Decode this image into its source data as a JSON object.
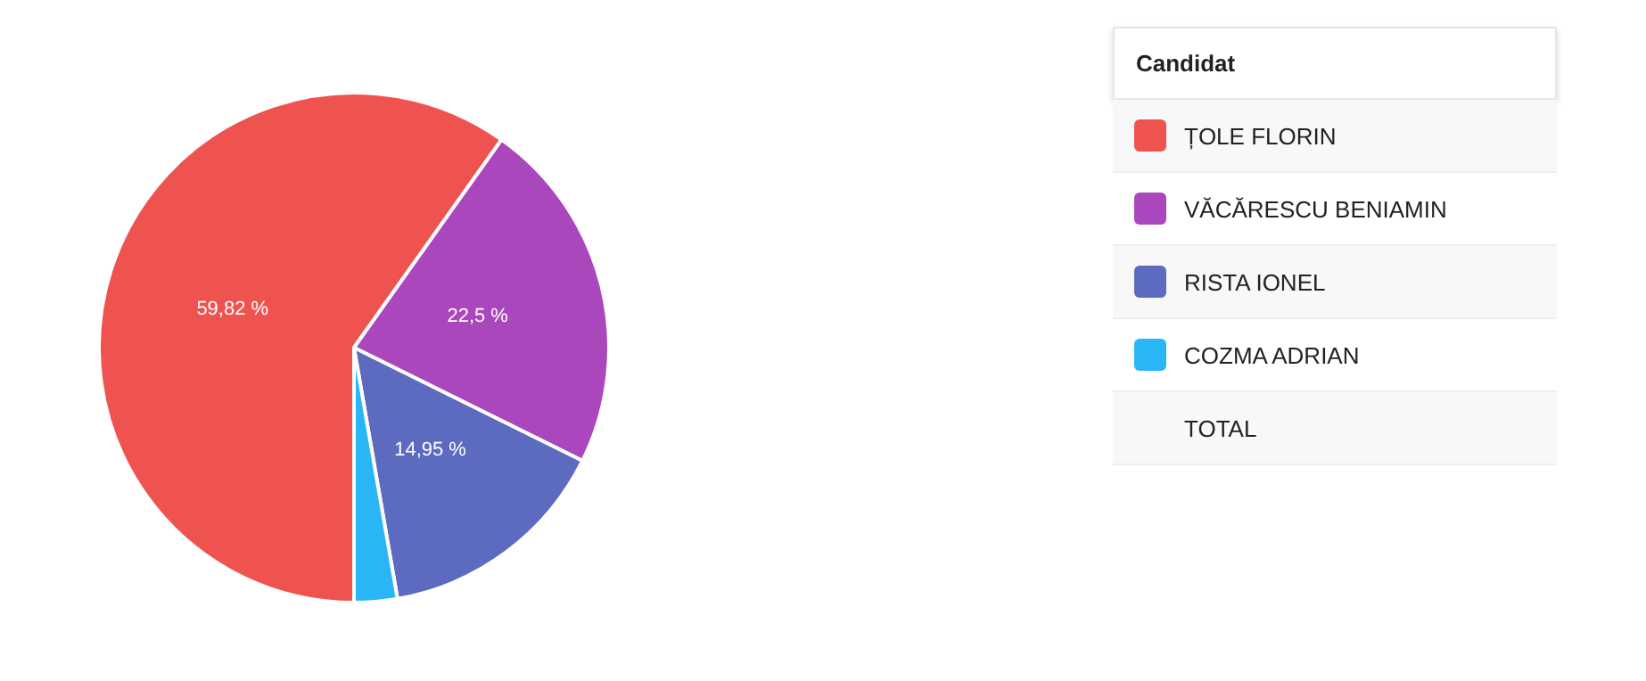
{
  "chart_data": {
    "type": "pie",
    "legend_title": "Candidat",
    "legend": "right",
    "categories": [
      "ȚOLE FLORIN",
      "VĂCĂRESCU BENIAMIN",
      "RISTA IONEL",
      "COZMA ADRIAN"
    ],
    "values": [
      59.82,
      22.5,
      14.95,
      2.73
    ],
    "value_labels": [
      "59,82 %",
      "22,5 %",
      "14,95 %",
      null
    ],
    "colors": [
      "#ef5350",
      "#ab47bc",
      "#5c6bc0",
      "#29b6f6"
    ],
    "annotations": [
      "TOTAL"
    ]
  }
}
